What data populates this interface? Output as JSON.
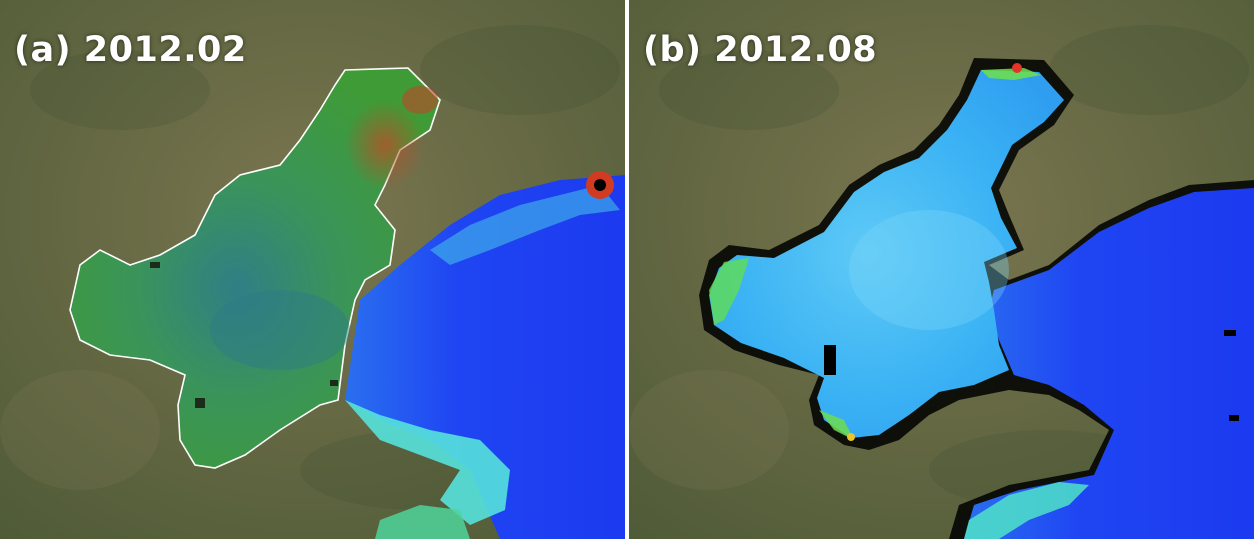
{
  "panels": [
    {
      "label": "(a) 2012.02",
      "colors": {
        "land": "#6b6a45",
        "sea_deep": "#1f3ff5",
        "sea_mid": "#2a8cf5",
        "sea_light": "#4fe0e6",
        "bay_fill": "#3f9a3a",
        "bay_core": "#3c8f7a",
        "high": "#d0452a",
        "outline": "#ffffff"
      }
    },
    {
      "label": "(b) 2012.08",
      "colors": {
        "land": "#6b6a45",
        "sea_deep": "#1f3ff5",
        "sea_mid": "#2a8cf5",
        "bay_fill": "#3fb8f5",
        "bay_light": "#60d2f7",
        "edge_green": "#5fe05a",
        "high": "#e5c52a"
      }
    }
  ]
}
